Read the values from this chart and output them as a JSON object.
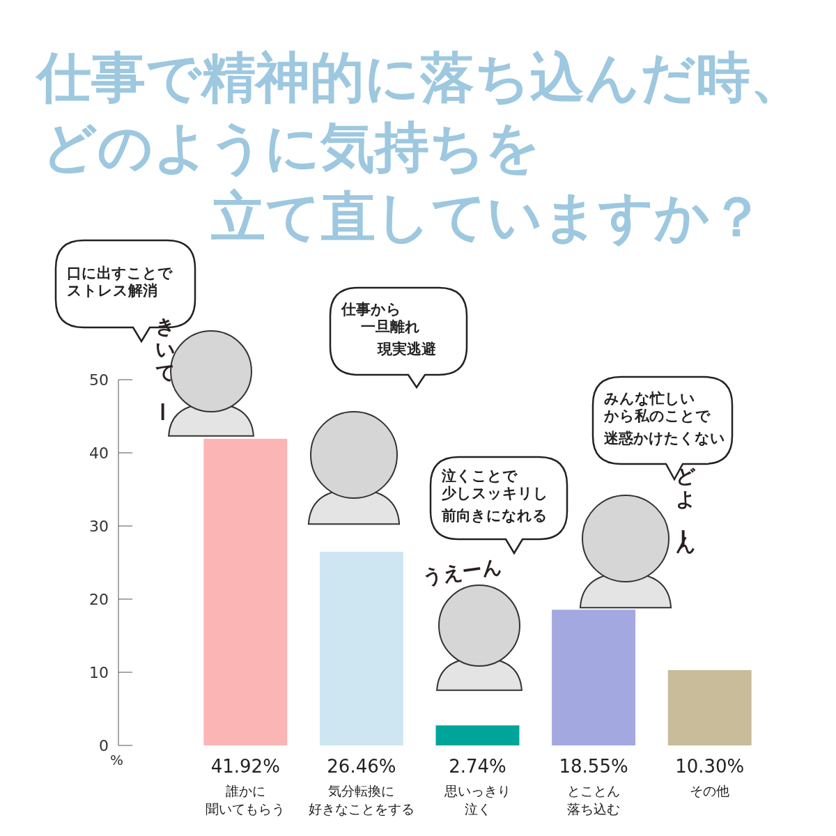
{
  "chart_data": {
    "type": "bar",
    "title": "仕事で精神的に落ち込んだ時、どのように気持ちを立て直していますか？",
    "categories": [
      "誰かに聞いてもらう",
      "気分転換に好きなことをする",
      "思いっきり泣く",
      "とことん落ち込む",
      "その他"
    ],
    "values": [
      41.92,
      26.46,
      2.74,
      18.55,
      10.3
    ],
    "value_labels": [
      "41.92%",
      "26.46%",
      "2.74%",
      "18.55%",
      "10.30%"
    ],
    "colors": [
      "#fbb5b5",
      "#cde6f2",
      "#00a599",
      "#a3a8e0",
      "#c8bc9a"
    ],
    "ylabel": "%",
    "ylim": [
      0,
      50
    ],
    "yticks": [
      0,
      10,
      20,
      30,
      40,
      50
    ],
    "annotations": [
      "口に出すことでストレス解消",
      "仕事から一旦離れ現実逃避",
      "泣くことで少しスッキリし前向きになれる",
      "みんな忙しいから私のことで迷惑かけたくない",
      "きいてー",
      "うえーん",
      "どよーん"
    ]
  }
}
